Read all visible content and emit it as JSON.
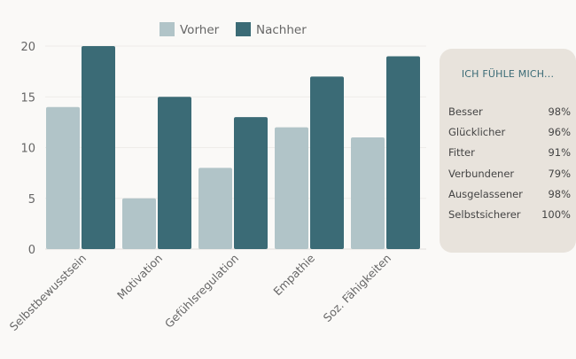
{
  "chart_data": {
    "type": "bar",
    "categories": [
      "Selbstbewusstsein",
      "Motivation",
      "Gefühlsregulation",
      "Empathie",
      "Soz. Fähigkeiten"
    ],
    "series": [
      {
        "name": "Vorher",
        "values": [
          14,
          5,
          8,
          12,
          11
        ],
        "color": "#b1c4c8"
      },
      {
        "name": "Nachher",
        "values": [
          20,
          15,
          13,
          17,
          19
        ],
        "color": "#3b6b76"
      }
    ],
    "ylim": [
      0,
      20
    ],
    "yticks": [
      0,
      5,
      10,
      15,
      20
    ],
    "legend": "top-center",
    "grid": true
  },
  "panel": {
    "title": "ICH FÜHLE MICH...",
    "items": [
      {
        "label": "Besser",
        "value": "98%"
      },
      {
        "label": "Glücklicher",
        "value": "96%"
      },
      {
        "label": "Fitter",
        "value": "91%"
      },
      {
        "label": "Verbundener",
        "value": "79%"
      },
      {
        "label": "Ausgelassener",
        "value": "98%"
      },
      {
        "label": "Selbstsicherer",
        "value": "100%"
      }
    ]
  }
}
